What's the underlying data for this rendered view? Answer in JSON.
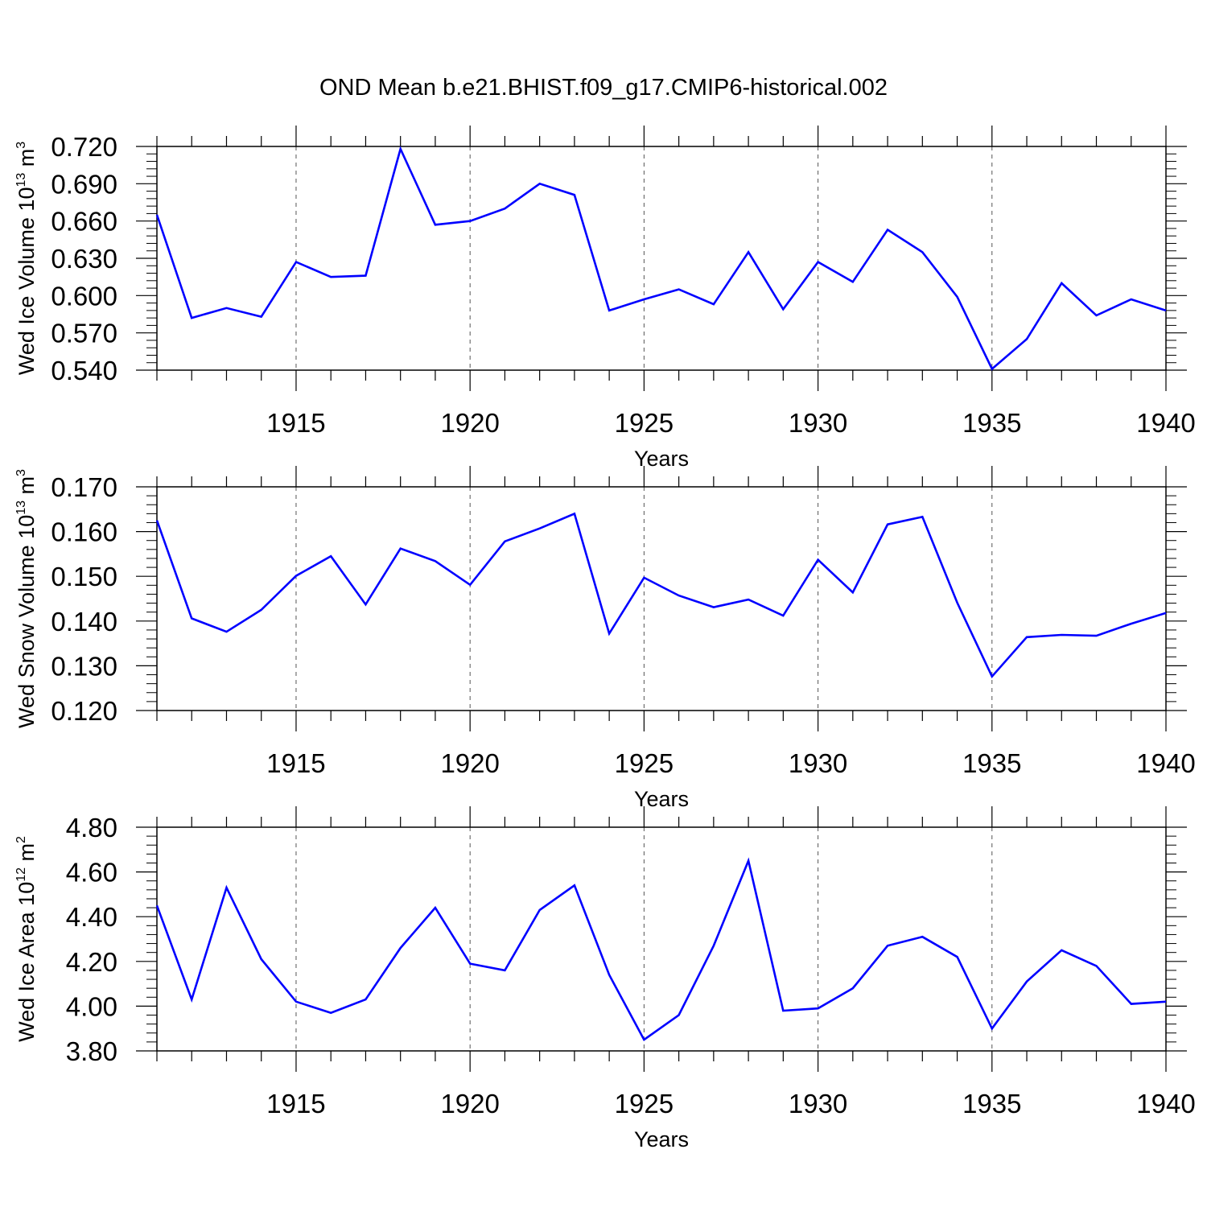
{
  "figure": {
    "title": "OND Mean b.e21.BHIST.f09_g17.CMIP6-historical.002"
  },
  "style": {
    "line_color": "#0000ff",
    "axis_color": "#000000",
    "grid_color": "#555555"
  },
  "chart_data": [
    {
      "type": "line",
      "ylabel_main": "Wed Ice Volume 10",
      "ylabel_exp": "13",
      "ylabel_unit": " m",
      "ylabel_unit_exp": "3",
      "xlabel": "Years",
      "xlim": [
        1911,
        1940
      ],
      "ylim": [
        0.54,
        0.72
      ],
      "yticks": [
        "0.540",
        "0.570",
        "0.600",
        "0.630",
        "0.660",
        "0.690",
        "0.720"
      ],
      "xticks": [
        "1915",
        "1920",
        "1925",
        "1930",
        "1935",
        "1940"
      ],
      "x": [
        1911,
        1912,
        1913,
        1914,
        1915,
        1916,
        1917,
        1918,
        1919,
        1920,
        1921,
        1922,
        1923,
        1924,
        1925,
        1926,
        1927,
        1928,
        1929,
        1930,
        1931,
        1932,
        1933,
        1934,
        1935,
        1936,
        1937,
        1938,
        1939,
        1940
      ],
      "values": [
        0.665,
        0.582,
        0.59,
        0.583,
        0.627,
        0.615,
        0.616,
        0.718,
        0.657,
        0.66,
        0.67,
        0.69,
        0.681,
        0.588,
        0.597,
        0.605,
        0.593,
        0.635,
        0.589,
        0.627,
        0.611,
        0.653,
        0.635,
        0.599,
        0.541,
        0.565,
        0.61,
        0.584,
        0.597,
        0.588
      ]
    },
    {
      "type": "line",
      "ylabel_main": "Wed Snow Volume 10",
      "ylabel_exp": "13",
      "ylabel_unit": " m",
      "ylabel_unit_exp": "3",
      "xlabel": "Years",
      "xlim": [
        1911,
        1940
      ],
      "ylim": [
        0.12,
        0.17
      ],
      "yticks": [
        "0.120",
        "0.130",
        "0.140",
        "0.150",
        "0.160",
        "0.170"
      ],
      "xticks": [
        "1915",
        "1920",
        "1925",
        "1930",
        "1935",
        "1940"
      ],
      "x": [
        1911,
        1912,
        1913,
        1914,
        1915,
        1916,
        1917,
        1918,
        1919,
        1920,
        1921,
        1922,
        1923,
        1924,
        1925,
        1926,
        1927,
        1928,
        1929,
        1930,
        1931,
        1932,
        1933,
        1934,
        1935,
        1936,
        1937,
        1938,
        1939,
        1940
      ],
      "values": [
        0.1625,
        0.1406,
        0.1376,
        0.1425,
        0.1501,
        0.1545,
        0.1437,
        0.1562,
        0.1534,
        0.1481,
        0.1578,
        0.1607,
        0.164,
        0.1372,
        0.1497,
        0.1457,
        0.1431,
        0.1448,
        0.1412,
        0.1537,
        0.1464,
        0.1616,
        0.1633,
        0.1441,
        0.1276,
        0.1364,
        0.1369,
        0.1367,
        0.1394,
        0.1418
      ]
    },
    {
      "type": "line",
      "ylabel_main": "Wed Ice Area 10",
      "ylabel_exp": "12",
      "ylabel_unit": " m",
      "ylabel_unit_exp": "2",
      "xlabel": "Years",
      "xlim": [
        1911,
        1940
      ],
      "ylim": [
        3.8,
        4.8
      ],
      "yticks": [
        "3.80",
        "4.00",
        "4.20",
        "4.40",
        "4.60",
        "4.80"
      ],
      "xticks": [
        "1915",
        "1920",
        "1925",
        "1930",
        "1935",
        "1940"
      ],
      "x": [
        1911,
        1912,
        1913,
        1914,
        1915,
        1916,
        1917,
        1918,
        1919,
        1920,
        1921,
        1922,
        1923,
        1924,
        1925,
        1926,
        1927,
        1928,
        1929,
        1930,
        1931,
        1932,
        1933,
        1934,
        1935,
        1936,
        1937,
        1938,
        1939,
        1940
      ],
      "values": [
        4.45,
        4.03,
        4.53,
        4.21,
        4.02,
        3.97,
        4.03,
        4.26,
        4.44,
        4.19,
        4.16,
        4.43,
        4.54,
        4.14,
        3.85,
        3.96,
        4.27,
        4.65,
        3.98,
        3.99,
        4.08,
        4.27,
        4.31,
        4.22,
        3.9,
        4.11,
        4.25,
        4.18,
        4.01,
        4.02
      ]
    }
  ]
}
